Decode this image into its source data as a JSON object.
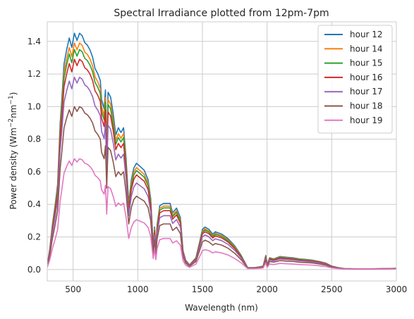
{
  "chart_data": {
    "type": "line",
    "title": "Spectral Irradiance plotted from 12pm-7pm",
    "xlabel": "Wavelength (nm)",
    "ylabel_main": "Power density (Wm",
    "ylabel_sup1": "−2",
    "ylabel_mid": "nm",
    "ylabel_sup2": "−1",
    "ylabel_end": ")",
    "xlim": [
      300,
      3000
    ],
    "ylim": [
      -0.07,
      1.52
    ],
    "x_ticks": [
      500,
      1000,
      1500,
      2000,
      2500,
      3000
    ],
    "x_tick_labels": [
      "500",
      "1000",
      "1500",
      "2000",
      "2500",
      "3000"
    ],
    "y_ticks": [
      0.0,
      0.2,
      0.4,
      0.6,
      0.8,
      1.0,
      1.2,
      1.4
    ],
    "y_tick_labels": [
      "0.0",
      "0.2",
      "0.4",
      "0.6",
      "0.8",
      "1.0",
      "1.2",
      "1.4"
    ],
    "grid": true,
    "legend_position": "top-right",
    "x": [
      300,
      320,
      340,
      360,
      380,
      400,
      410,
      430,
      450,
      470,
      490,
      510,
      530,
      550,
      570,
      590,
      610,
      630,
      650,
      670,
      690,
      710,
      720,
      740,
      750,
      760,
      770,
      790,
      810,
      830,
      850,
      870,
      890,
      910,
      930,
      950,
      970,
      990,
      1010,
      1050,
      1080,
      1100,
      1120,
      1130,
      1140,
      1150,
      1170,
      1200,
      1250,
      1270,
      1300,
      1330,
      1350,
      1370,
      1400,
      1450,
      1480,
      1500,
      1520,
      1550,
      1580,
      1600,
      1650,
      1700,
      1750,
      1800,
      1850,
      1900,
      1950,
      1970,
      1990,
      2000,
      2020,
      2050,
      2100,
      2150,
      2200,
      2250,
      2300,
      2350,
      2400,
      2450,
      2500,
      2550,
      2600,
      2700,
      2800,
      2900,
      3000
    ],
    "base_profile": [
      0.02,
      0.09,
      0.19,
      0.27,
      0.36,
      0.62,
      0.7,
      0.87,
      0.93,
      0.98,
      0.94,
      1.0,
      0.97,
      1.0,
      0.99,
      0.96,
      0.95,
      0.93,
      0.9,
      0.85,
      0.83,
      0.8,
      0.72,
      0.68,
      0.76,
      0.5,
      0.75,
      0.73,
      0.66,
      0.57,
      0.6,
      0.58,
      0.6,
      0.47,
      0.28,
      0.38,
      0.43,
      0.45,
      0.44,
      0.42,
      0.38,
      0.3,
      0.1,
      0.18,
      0.09,
      0.19,
      0.27,
      0.28,
      0.28,
      0.24,
      0.26,
      0.22,
      0.08,
      0.04,
      0.02,
      0.05,
      0.12,
      0.17,
      0.18,
      0.17,
      0.15,
      0.16,
      0.15,
      0.13,
      0.1,
      0.06,
      0.008,
      0.008,
      0.012,
      0.015,
      0.06,
      0.02,
      0.05,
      0.045,
      0.055,
      0.052,
      0.05,
      0.045,
      0.043,
      0.04,
      0.035,
      0.028,
      0.015,
      0.008,
      0.004,
      0.003,
      0.003,
      0.004,
      0.005
    ],
    "series": [
      {
        "name": "hour 12",
        "color": "#1f77b4",
        "peak": 1.45
      },
      {
        "name": "hour 14",
        "color": "#ff7f0e",
        "peak": 1.39
      },
      {
        "name": "hour 15",
        "color": "#2ca02c",
        "peak": 1.35
      },
      {
        "name": "hour 16",
        "color": "#d62728",
        "peak": 1.29
      },
      {
        "name": "hour 17",
        "color": "#9467bd",
        "peak": 1.18
      },
      {
        "name": "hour 18",
        "color": "#8c564b",
        "peak": 1.0
      },
      {
        "name": "hour 19",
        "color": "#e377c2",
        "peak": 0.68
      }
    ]
  }
}
